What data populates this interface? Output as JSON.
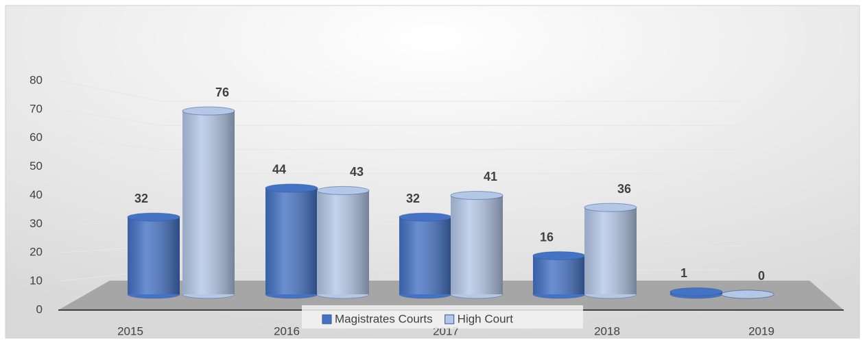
{
  "chart_data": {
    "type": "bar",
    "categories": [
      "2015",
      "2016",
      "2017",
      "2018",
      "2019"
    ],
    "series": [
      {
        "name": "Magistrates Courts",
        "color": "#4472c4",
        "values": [
          32,
          44,
          32,
          16,
          1
        ]
      },
      {
        "name": "High Court",
        "color": "#b4c7e7",
        "values": [
          76,
          43,
          41,
          36,
          0
        ]
      }
    ],
    "ylim": [
      0,
      80
    ],
    "yticks": [
      0,
      10,
      20,
      30,
      40,
      50,
      60,
      70,
      80
    ],
    "grid": true,
    "legend": "bottom"
  }
}
